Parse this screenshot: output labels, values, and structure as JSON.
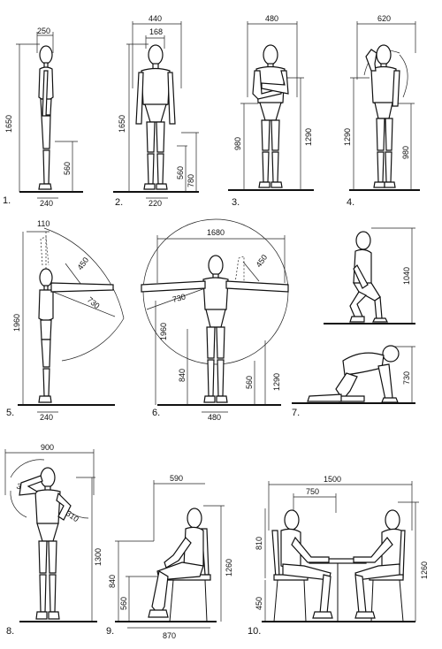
{
  "figures": [
    {
      "number": "1.",
      "dims": [
        "250",
        "1650",
        "560",
        "240"
      ]
    },
    {
      "number": "2.",
      "dims": [
        "440",
        "168",
        "1650",
        "560",
        "780",
        "220"
      ]
    },
    {
      "number": "3.",
      "dims": [
        "480",
        "980",
        "1290"
      ]
    },
    {
      "number": "4.",
      "dims": [
        "620",
        "1290",
        "980"
      ]
    },
    {
      "number": "5.",
      "dims": [
        "110",
        "450",
        "730",
        "1960",
        "240"
      ]
    },
    {
      "number": "6.",
      "dims": [
        "1680",
        "450",
        "730",
        "1960",
        "840",
        "560",
        "1290",
        "480"
      ]
    },
    {
      "number": "7.",
      "dims": [
        "1040",
        "730"
      ]
    },
    {
      "number": "8.",
      "dims": [
        "900",
        "310",
        "310",
        "1300"
      ]
    },
    {
      "number": "9.",
      "dims": [
        "590",
        "840",
        "560",
        "1260",
        "870"
      ]
    },
    {
      "number": "10.",
      "dims": [
        "1500",
        "750",
        "810",
        "450",
        "1260"
      ]
    }
  ],
  "colors": {
    "ink": "#111111",
    "paper": "#ffffff"
  }
}
